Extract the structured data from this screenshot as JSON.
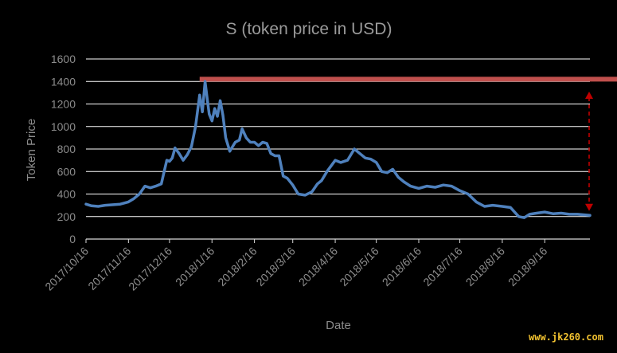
{
  "chart_data": {
    "type": "line",
    "title": "S (token price in USD)",
    "xlabel": "Date",
    "ylabel": "Token Price",
    "ylim": [
      0,
      1600
    ],
    "yticks": [
      0,
      200,
      400,
      600,
      800,
      1000,
      1200,
      1400,
      1600
    ],
    "xlim": [
      "2017-10-16",
      "2018-10-19"
    ],
    "xticks": [
      "2017/10/16",
      "2017/11/16",
      "2017/12/16",
      "2018/1/16",
      "2018/2/16",
      "2018/3/16",
      "2018/4/16",
      "2018/5/16",
      "2018/6/16",
      "2018/7/16",
      "2018/8/16",
      "2018/9/16"
    ],
    "grid": true,
    "series": [
      {
        "color": "#4f81bd",
        "x": [
          "2017-10-16",
          "2017-10-20",
          "2017-10-25",
          "2017-10-30",
          "2017-11-05",
          "2017-11-10",
          "2017-11-16",
          "2017-11-20",
          "2017-11-24",
          "2017-11-28",
          "2017-12-02",
          "2017-12-06",
          "2017-12-10",
          "2017-12-14",
          "2017-12-16",
          "2017-12-18",
          "2017-12-20",
          "2017-12-23",
          "2017-12-26",
          "2017-12-29",
          "2018-01-01",
          "2018-01-04",
          "2018-01-07",
          "2018-01-09",
          "2018-01-11",
          "2018-01-13",
          "2018-01-14",
          "2018-01-16",
          "2018-01-18",
          "2018-01-20",
          "2018-01-22",
          "2018-01-24",
          "2018-01-26",
          "2018-01-29",
          "2018-02-02",
          "2018-02-05",
          "2018-02-07",
          "2018-02-10",
          "2018-02-13",
          "2018-02-16",
          "2018-02-19",
          "2018-02-22",
          "2018-02-25",
          "2018-02-28",
          "2018-03-03",
          "2018-03-06",
          "2018-03-09",
          "2018-03-12",
          "2018-03-16",
          "2018-03-20",
          "2018-03-25",
          "2018-03-30",
          "2018-04-03",
          "2018-04-06",
          "2018-04-10",
          "2018-04-13",
          "2018-04-16",
          "2018-04-20",
          "2018-04-25",
          "2018-04-30",
          "2018-05-04",
          "2018-05-08",
          "2018-05-12",
          "2018-05-16",
          "2018-05-20",
          "2018-05-24",
          "2018-05-28",
          "2018-06-01",
          "2018-06-05",
          "2018-06-10",
          "2018-06-16",
          "2018-06-22",
          "2018-06-28",
          "2018-07-04",
          "2018-07-10",
          "2018-07-16",
          "2018-07-22",
          "2018-07-28",
          "2018-08-03",
          "2018-08-09",
          "2018-08-16",
          "2018-08-22",
          "2018-08-28",
          "2018-09-01",
          "2018-09-05",
          "2018-09-10",
          "2018-09-16",
          "2018-09-22",
          "2018-09-28",
          "2018-10-04",
          "2018-10-10",
          "2018-10-19"
        ],
        "y": [
          310,
          295,
          290,
          300,
          305,
          310,
          330,
          360,
          400,
          470,
          455,
          470,
          490,
          700,
          690,
          720,
          810,
          760,
          700,
          750,
          820,
          1000,
          1280,
          1130,
          1400,
          1200,
          1110,
          1050,
          1160,
          1090,
          1230,
          1100,
          900,
          780,
          860,
          880,
          980,
          900,
          860,
          860,
          830,
          860,
          850,
          760,
          740,
          740,
          560,
          540,
          480,
          400,
          390,
          420,
          490,
          520,
          600,
          650,
          700,
          680,
          700,
          800,
          760,
          720,
          710,
          680,
          600,
          590,
          620,
          550,
          510,
          470,
          450,
          470,
          460,
          480,
          470,
          430,
          400,
          330,
          290,
          300,
          290,
          280,
          200,
          190,
          220,
          230,
          240,
          225,
          230,
          220,
          220,
          210
        ]
      }
    ],
    "annotations": [
      {
        "type": "hline",
        "y": 1420,
        "x_start": "2018-01-07",
        "color": "#c0504d"
      },
      {
        "type": "double-arrow",
        "x": "2018-10-19",
        "y_start": 1310,
        "y_end": 250,
        "color": "#c00000"
      }
    ]
  },
  "watermark": "www.jk260.com"
}
